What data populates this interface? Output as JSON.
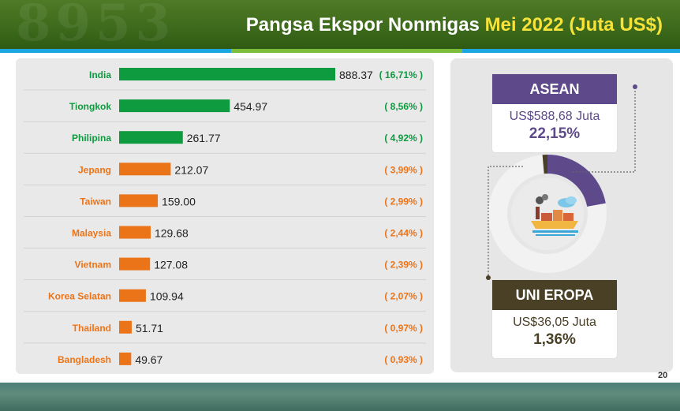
{
  "header": {
    "title_main": "Pangsa Ekspor Nonmigas",
    "title_highlight": "Mei 2022",
    "title_unit": "(Juta US$)"
  },
  "chart_data": {
    "type": "bar",
    "orientation": "horizontal",
    "categories": [
      "India",
      "Tiongkok",
      "Philipina",
      "Jepang",
      "Taiwan",
      "Malaysia",
      "Vietnam",
      "Korea Selatan",
      "Thailand",
      "Bangladesh"
    ],
    "values": [
      888.37,
      454.97,
      261.77,
      212.07,
      159.0,
      129.68,
      127.08,
      109.94,
      51.71,
      49.67
    ],
    "value_labels": [
      "888.37",
      "454.97",
      "261.77",
      "212.07",
      "159.00",
      "129.68",
      "127.08",
      "109.94",
      "51.71",
      "49.67"
    ],
    "shares": [
      "( 16,71% )",
      "( 8,56% )",
      "( 4,92% )",
      "( 3,99% )",
      "( 2,99% )",
      "( 2,44% )",
      "( 2,39% )",
      "( 2,07% )",
      "( 0,97% )",
      "( 0,93% )"
    ],
    "colors": [
      "#0e9a3f",
      "#0e9a3f",
      "#0e9a3f",
      "#ec7418",
      "#ec7418",
      "#ec7418",
      "#ec7418",
      "#ec7418",
      "#ec7418",
      "#ec7418"
    ],
    "xlim": [
      0,
      888.37
    ],
    "grid": false,
    "legend": "none"
  },
  "asean": {
    "title": "ASEAN",
    "value": "US$588,68 Juta",
    "share": "22,15%",
    "share_fraction": 0.2215,
    "color": "#5e4a8a"
  },
  "eu": {
    "title": "UNI EROPA",
    "value": "US$36,05 Juta",
    "share": "1,36%",
    "share_fraction": 0.0136,
    "color": "#4a4026"
  },
  "icon": "factory-ship-icon",
  "page_number": "20"
}
